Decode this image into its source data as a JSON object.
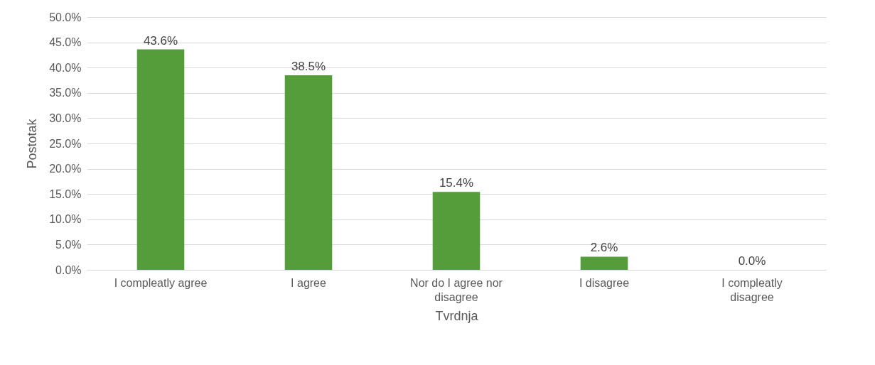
{
  "chart_data": {
    "type": "bar",
    "xlabel": "Tvrdnja",
    "ylabel": "Postotak",
    "categories": [
      "I compleatly agree",
      "I agree",
      "Nor do I agree nor disagree",
      "I disagree",
      "I compleatly disagree"
    ],
    "values": [
      43.6,
      38.5,
      15.4,
      2.6,
      0.0
    ],
    "value_labels": [
      "43.6%",
      "38.5%",
      "15.4%",
      "2.6%",
      "0.0%"
    ],
    "color": "#559c3b",
    "ylim": [
      0,
      50
    ],
    "yticks": [
      {
        "value": 0,
        "label": "0.0%"
      },
      {
        "value": 5,
        "label": "5.0%"
      },
      {
        "value": 10,
        "label": "10.0%"
      },
      {
        "value": 15,
        "label": "15.0%"
      },
      {
        "value": 20,
        "label": "20.0%"
      },
      {
        "value": 25,
        "label": "25.0%"
      },
      {
        "value": 30,
        "label": "30.0%"
      },
      {
        "value": 35,
        "label": "35.0%"
      },
      {
        "value": 40,
        "label": "40.0%"
      },
      {
        "value": 45,
        "label": "45.0%"
      },
      {
        "value": 50,
        "label": "50.0%"
      }
    ],
    "grid": "y"
  }
}
